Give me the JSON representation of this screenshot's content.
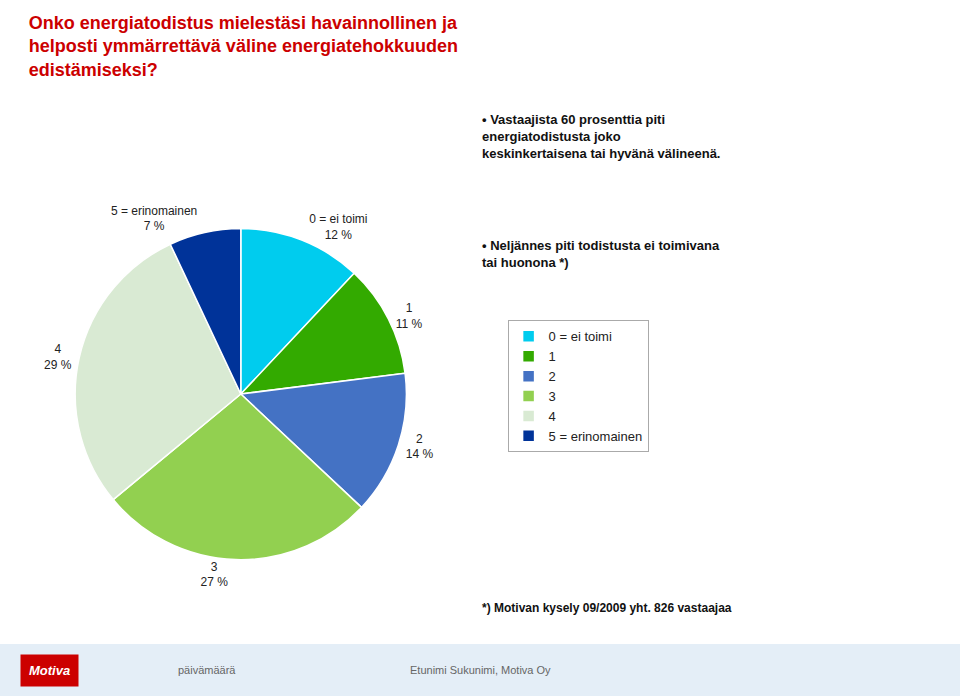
{
  "chart_data": {
    "type": "pie",
    "title": "Onko energiatodistus mielestäsi havainnollinen ja\nhelposti ymmärrettävä väline energiatehokkuuden\nedistämiseksi?",
    "categories": [
      "0 = ei toimi",
      "1",
      "2",
      "3",
      "4",
      "5 = erinomainen"
    ],
    "values": [
      12,
      11,
      14,
      27,
      29,
      7
    ],
    "value_labels": [
      "12 %",
      "11 %",
      "14 %",
      "27 %",
      "29 %",
      "7 %"
    ],
    "data_labels": true,
    "colors": [
      "#00ccee",
      "#33aa00",
      "#4472c4",
      "#92d050",
      "#d9ead3",
      "#003399"
    ],
    "legend": "right",
    "annotations": [
      "• Vastaajista 60 prosenttia piti\nenergiatodistusta joko\nkeskinkertaisena tai hyvänä välineenä.",
      "• Neljännes piti todistusta ei toimivana\ntai huonona *)",
      "*) Motivan kysely 09/2009 yht. 826 vastaajaa",
      "Motiva",
      "päivämäärä",
      "Etunimi Sukunimi, Motiva Oy"
    ]
  }
}
